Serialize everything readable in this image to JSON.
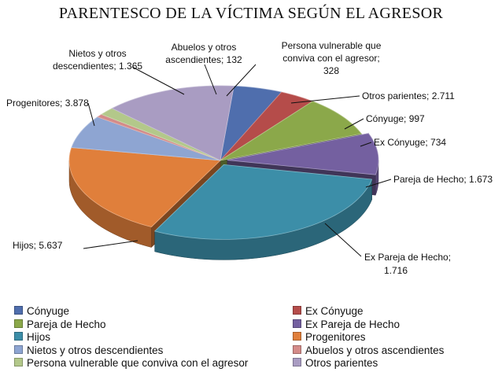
{
  "chart_data": {
    "type": "pie",
    "title": "PARENTESCO DE LA VÍCTIMA SEGÚN EL AGRESOR",
    "slices": [
      {
        "name": "Cónyuge",
        "value": 997,
        "label": "Cónyuge; 997",
        "color": "#4F6EAD"
      },
      {
        "name": "Ex Cónyuge",
        "value": 734,
        "label": "Ex Cónyuge; 734",
        "color": "#B54C4A"
      },
      {
        "name": "Pareja de Hecho",
        "value": 1673,
        "label": "Pareja de Hecho; 1.673",
        "color": "#8BA84A"
      },
      {
        "name": "Ex Pareja de Hecho",
        "value": 1716,
        "label": "Ex Pareja de Hecho; 1.716",
        "color": "#7460A0"
      },
      {
        "name": "Hijos",
        "value": 5637,
        "label": "Hijos; 5.637",
        "color": "#3C8EA8"
      },
      {
        "name": "Progenitores",
        "value": 3878,
        "label": "Progenitores; 3.878",
        "color": "#E07F3B"
      },
      {
        "name": "Nietos y otros descendientes",
        "value": 1365,
        "label": "Nietos y otros descendientes; 1.365",
        "color": "#8EA5D2"
      },
      {
        "name": "Abuelos y otros ascendientes",
        "value": 132,
        "label": "Abuelos y otros ascendientes; 132",
        "color": "#D48B89"
      },
      {
        "name": "Persona vulnerable que conviva con el agresor",
        "value": 328,
        "label": "Persona vulnerable que conviva con el agresor; 328",
        "color": "#B3C88A"
      },
      {
        "name": "Otros parientes",
        "value": 2711,
        "label": "Otros parientes; 2.711",
        "color": "#A99CC2"
      }
    ],
    "legend_placement": "bottom",
    "exploded_slices": [
      "Ex Pareja de Hecho",
      "Hijos"
    ]
  }
}
